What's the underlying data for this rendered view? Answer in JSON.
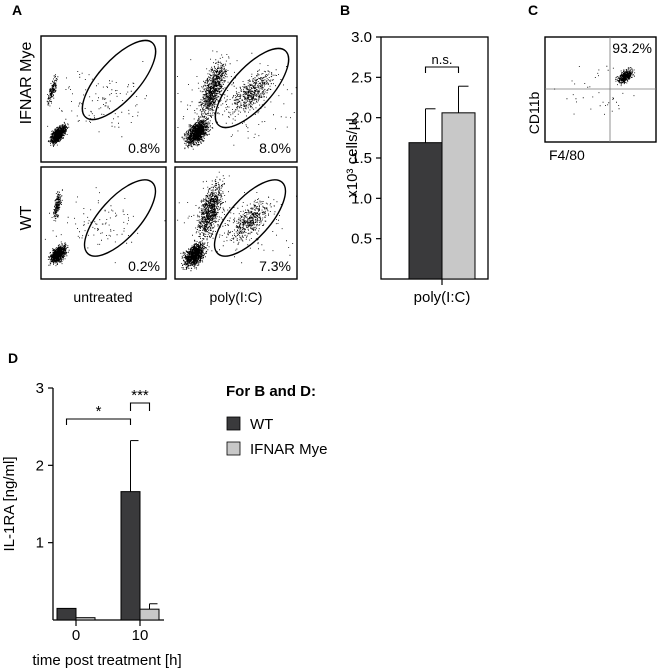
{
  "panels": {
    "A": {
      "letter": "A",
      "row_labels": [
        "IFNAR Mye",
        "WT"
      ],
      "col_labels": [
        "untreated",
        "poly(I:C)"
      ],
      "percentages": [
        [
          "0.8%",
          "8.0%"
        ],
        [
          "0.2%",
          "7.3%"
        ]
      ]
    },
    "B": {
      "letter": "B"
    },
    "C": {
      "letter": "C",
      "percentage": "93.2%",
      "ylabel": "CD11b",
      "xlabel": "F4/80"
    },
    "D": {
      "letter": "D"
    }
  },
  "legend": {
    "title": "For B and D:",
    "items": [
      {
        "label": "WT",
        "color": "#3a3a3c"
      },
      {
        "label": "IFNAR Mye",
        "color": "#c8c8c8"
      }
    ]
  },
  "chart_data": [
    {
      "type": "bar",
      "panel": "B",
      "categories": [
        "poly(I:C)"
      ],
      "ylabel": "x10³ cells/µl",
      "ylim": [
        0,
        3.0
      ],
      "yticks": [
        "0.5",
        "1.0",
        "1.5",
        "2.0",
        "2.5",
        "3.0"
      ],
      "series": [
        {
          "name": "WT",
          "color": "#3a3a3c",
          "values": [
            1.69
          ],
          "errors": [
            0.42
          ]
        },
        {
          "name": "IFNAR Mye",
          "color": "#c8c8c8",
          "values": [
            2.06
          ],
          "errors": [
            0.33
          ]
        }
      ],
      "annotations": [
        {
          "text": "n.s.",
          "between": [
            "WT",
            "IFNAR Mye"
          ]
        }
      ]
    },
    {
      "type": "bar",
      "panel": "D",
      "categories": [
        "0",
        "10"
      ],
      "xlabel": "time post treatment [h]",
      "ylabel": "IL-1RA [ng/ml]",
      "ylim": [
        0,
        3
      ],
      "yticks": [
        "1",
        "2",
        "3"
      ],
      "series": [
        {
          "name": "WT",
          "color": "#3a3a3c",
          "values": [
            0.15,
            1.66
          ],
          "errors": [
            0,
            0.66
          ]
        },
        {
          "name": "IFNAR Mye",
          "color": "#c8c8c8",
          "values": [
            0.03,
            0.14
          ],
          "errors": [
            0,
            0.07
          ]
        }
      ],
      "annotations": [
        {
          "text": "*",
          "between": [
            "0 WT",
            "10 WT"
          ]
        },
        {
          "text": "***",
          "between": [
            "10 WT",
            "10 IFNAR Mye"
          ]
        }
      ]
    }
  ]
}
